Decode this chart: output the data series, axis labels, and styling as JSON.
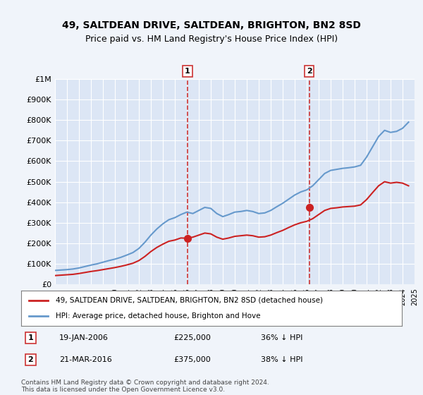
{
  "title": "49, SALTDEAN DRIVE, SALTDEAN, BRIGHTON, BN2 8SD",
  "subtitle": "Price paid vs. HM Land Registry's House Price Index (HPI)",
  "background_color": "#f0f4fa",
  "plot_bg_color": "#dce6f5",
  "hpi_color": "#6699cc",
  "price_color": "#cc2222",
  "marker_color": "#cc2222",
  "vline_color": "#cc3333",
  "ylim": [
    0,
    1000000
  ],
  "yticks": [
    0,
    100000,
    200000,
    300000,
    400000,
    500000,
    600000,
    700000,
    800000,
    900000,
    1000000
  ],
  "ytick_labels": [
    "£0",
    "£100K",
    "£200K",
    "£300K",
    "£400K",
    "£500K",
    "£600K",
    "£700K",
    "£800K",
    "£900K",
    "£1M"
  ],
  "transaction1_date": "19-JAN-2006",
  "transaction1_price": 225000,
  "transaction1_pct": "36% ↓ HPI",
  "transaction1_x": 2006.05,
  "transaction2_date": "21-MAR-2016",
  "transaction2_price": 375000,
  "transaction2_pct": "38% ↓ HPI",
  "transaction2_x": 2016.22,
  "legend_property": "49, SALTDEAN DRIVE, SALTDEAN, BRIGHTON, BN2 8SD (detached house)",
  "legend_hpi": "HPI: Average price, detached house, Brighton and Hove",
  "footer": "Contains HM Land Registry data © Crown copyright and database right 2024.\nThis data is licensed under the Open Government Licence v3.0.",
  "hpi_data_x": [
    1995,
    1995.5,
    1996,
    1996.5,
    1997,
    1997.5,
    1998,
    1998.5,
    1999,
    1999.5,
    2000,
    2000.5,
    2001,
    2001.5,
    2002,
    2002.5,
    2003,
    2003.5,
    2004,
    2004.5,
    2005,
    2005.5,
    2006,
    2006.5,
    2007,
    2007.5,
    2008,
    2008.5,
    2009,
    2009.5,
    2010,
    2010.5,
    2011,
    2011.5,
    2012,
    2012.5,
    2013,
    2013.5,
    2014,
    2014.5,
    2015,
    2015.5,
    2016,
    2016.5,
    2017,
    2017.5,
    2018,
    2018.5,
    2019,
    2019.5,
    2020,
    2020.5,
    2021,
    2021.5,
    2022,
    2022.5,
    2023,
    2023.5,
    2024,
    2024.5
  ],
  "hpi_data_y": [
    68000,
    70000,
    72000,
    75000,
    80000,
    87000,
    94000,
    100000,
    108000,
    116000,
    123000,
    132000,
    143000,
    155000,
    175000,
    205000,
    240000,
    270000,
    295000,
    315000,
    325000,
    340000,
    352000,
    345000,
    360000,
    375000,
    370000,
    345000,
    330000,
    340000,
    352000,
    355000,
    360000,
    355000,
    345000,
    348000,
    360000,
    378000,
    395000,
    415000,
    435000,
    450000,
    460000,
    480000,
    510000,
    540000,
    555000,
    560000,
    565000,
    568000,
    572000,
    580000,
    620000,
    670000,
    720000,
    750000,
    740000,
    745000,
    760000,
    790000
  ],
  "price_data_x": [
    1995,
    1995.5,
    1996,
    1996.5,
    1997,
    1997.5,
    1998,
    1998.5,
    1999,
    1999.5,
    2000,
    2000.5,
    2001,
    2001.5,
    2002,
    2002.5,
    2003,
    2003.5,
    2004,
    2004.5,
    2005,
    2005.5,
    2006,
    2006.5,
    2007,
    2007.5,
    2008,
    2008.5,
    2009,
    2009.5,
    2010,
    2010.5,
    2011,
    2011.5,
    2012,
    2012.5,
    2013,
    2013.5,
    2014,
    2014.5,
    2015,
    2015.5,
    2016,
    2016.5,
    2017,
    2017.5,
    2018,
    2018.5,
    2019,
    2019.5,
    2020,
    2020.5,
    2021,
    2021.5,
    2022,
    2022.5,
    2023,
    2023.5,
    2024,
    2024.5
  ],
  "price_data_y": [
    43000,
    45000,
    47000,
    49000,
    53000,
    58000,
    63000,
    67000,
    72000,
    77000,
    82000,
    88000,
    95000,
    103000,
    116000,
    136000,
    160000,
    180000,
    196000,
    210000,
    216000,
    226000,
    225000,
    230000,
    240000,
    250000,
    246000,
    230000,
    220000,
    226000,
    234000,
    237000,
    240000,
    237000,
    230000,
    232000,
    240000,
    252000,
    263000,
    277000,
    290000,
    300000,
    307000,
    320000,
    340000,
    360000,
    370000,
    373000,
    377000,
    379000,
    381000,
    387000,
    413000,
    447000,
    480000,
    500000,
    493000,
    497000,
    493000,
    480000
  ]
}
